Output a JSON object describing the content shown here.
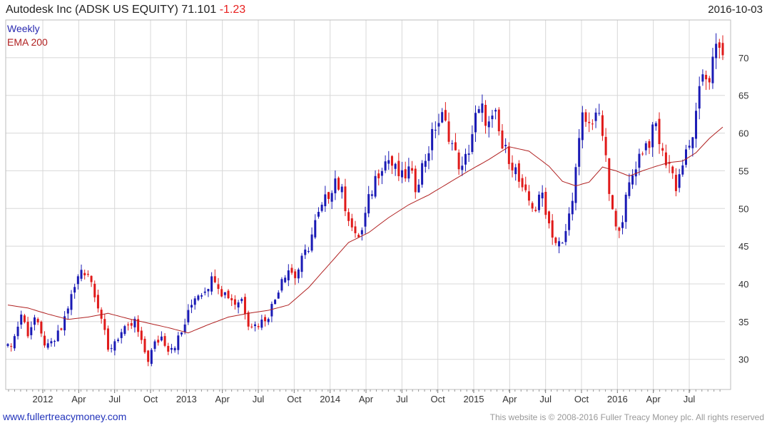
{
  "header": {
    "title": "Autodesk Inc (ADSK US EQUITY) 71.101",
    "change": "-1.23",
    "date": "2016-10-03"
  },
  "legend": {
    "weekly": "Weekly",
    "ema": "EMA 200"
  },
  "footer": {
    "left": "www.fullertreacymoney.com",
    "right": "This website is © 2008-2016 Fuller Treacy Money plc. All rights reserved"
  },
  "colors": {
    "up": "#1a1ab5",
    "down": "#e01a1a",
    "ema": "#b02020",
    "grid": "#d8d8d8"
  },
  "chart_data": {
    "type": "candlestick",
    "title": "Autodesk Inc (ADSK US EQUITY) 71.101 -1.23",
    "frequency": "Weekly",
    "ylim": [
      26,
      75
    ],
    "y_ticks": [
      30,
      35,
      40,
      45,
      50,
      55,
      60,
      65,
      70
    ],
    "x_tick_labels": [
      "2012",
      "Apr",
      "Jul",
      "Oct",
      "2013",
      "Apr",
      "Jul",
      "Oct",
      "2014",
      "Apr",
      "Jul",
      "Oct",
      "2015",
      "Apr",
      "Jul",
      "Oct",
      "2016",
      "Apr",
      "Jul"
    ],
    "price_path": [
      [
        0,
        31.5
      ],
      [
        2,
        33
      ],
      [
        4,
        36
      ],
      [
        6,
        33.5
      ],
      [
        8,
        35.5
      ],
      [
        10,
        33
      ],
      [
        12,
        31.5
      ],
      [
        14,
        32.5
      ],
      [
        16,
        34
      ],
      [
        18,
        37
      ],
      [
        20,
        39.5
      ],
      [
        22,
        42
      ],
      [
        24,
        41.5
      ],
      [
        26,
        39
      ],
      [
        28,
        35.5
      ],
      [
        30,
        31
      ],
      [
        32,
        32.5
      ],
      [
        34,
        33.5
      ],
      [
        36,
        34
      ],
      [
        38,
        35
      ],
      [
        40,
        32
      ],
      [
        42,
        30
      ],
      [
        44,
        32
      ],
      [
        46,
        33
      ],
      [
        48,
        31.5
      ],
      [
        50,
        32
      ],
      [
        52,
        33.5
      ],
      [
        54,
        36
      ],
      [
        56,
        38.5
      ],
      [
        58,
        39
      ],
      [
        60,
        40
      ],
      [
        62,
        41
      ],
      [
        64,
        39
      ],
      [
        66,
        38.5
      ],
      [
        68,
        37.5
      ],
      [
        70,
        38
      ],
      [
        72,
        35
      ],
      [
        74,
        34.5
      ],
      [
        76,
        35
      ],
      [
        78,
        36
      ],
      [
        80,
        38
      ],
      [
        82,
        41
      ],
      [
        84,
        42
      ],
      [
        86,
        41
      ],
      [
        88,
        43
      ],
      [
        90,
        45
      ],
      [
        92,
        48
      ],
      [
        94,
        50
      ],
      [
        96,
        52
      ],
      [
        98,
        54
      ],
      [
        100,
        52
      ],
      [
        102,
        49
      ],
      [
        104,
        46
      ],
      [
        106,
        47
      ],
      [
        108,
        51
      ],
      [
        110,
        54
      ],
      [
        112,
        56
      ],
      [
        114,
        56.5
      ],
      [
        116,
        55
      ],
      [
        118,
        54
      ],
      [
        120,
        55
      ],
      [
        122,
        53
      ],
      [
        124,
        55.5
      ],
      [
        126,
        58
      ],
      [
        128,
        61
      ],
      [
        130,
        62
      ],
      [
        132,
        60
      ],
      [
        134,
        57
      ],
      [
        136,
        55
      ],
      [
        138,
        58
      ],
      [
        140,
        62
      ],
      [
        142,
        63
      ],
      [
        144,
        61
      ],
      [
        146,
        62
      ],
      [
        148,
        58
      ],
      [
        150,
        57
      ],
      [
        152,
        55
      ],
      [
        154,
        52
      ],
      [
        156,
        51
      ],
      [
        158,
        50
      ],
      [
        160,
        52
      ],
      [
        162,
        48
      ],
      [
        164,
        45.5
      ],
      [
        166,
        45
      ],
      [
        168,
        49
      ],
      [
        170,
        55
      ],
      [
        172,
        62
      ],
      [
        174,
        61
      ],
      [
        176,
        63
      ],
      [
        178,
        60
      ],
      [
        180,
        52
      ],
      [
        182,
        47
      ],
      [
        184,
        49
      ],
      [
        186,
        53
      ],
      [
        188,
        56
      ],
      [
        190,
        58
      ],
      [
        192,
        59
      ],
      [
        194,
        61
      ],
      [
        196,
        57
      ],
      [
        198,
        56
      ],
      [
        200,
        53
      ],
      [
        202,
        56
      ],
      [
        204,
        58
      ],
      [
        206,
        62
      ],
      [
        208,
        68
      ],
      [
        210,
        67.5
      ],
      [
        212,
        71
      ],
      [
        214,
        71.1
      ]
    ],
    "ema_path": [
      [
        0,
        37.2
      ],
      [
        6,
        36.8
      ],
      [
        12,
        36
      ],
      [
        18,
        35.3
      ],
      [
        24,
        35.6
      ],
      [
        30,
        36.1
      ],
      [
        36,
        35.4
      ],
      [
        42,
        34.8
      ],
      [
        48,
        34.2
      ],
      [
        54,
        33.5
      ],
      [
        60,
        34.6
      ],
      [
        66,
        35.6
      ],
      [
        72,
        36.1
      ],
      [
        78,
        36.5
      ],
      [
        84,
        37.2
      ],
      [
        90,
        39.5
      ],
      [
        96,
        42.5
      ],
      [
        102,
        45.5
      ],
      [
        108,
        46.8
      ],
      [
        114,
        48.8
      ],
      [
        120,
        50.5
      ],
      [
        126,
        51.8
      ],
      [
        132,
        53.4
      ],
      [
        138,
        55
      ],
      [
        144,
        56.5
      ],
      [
        150,
        58.2
      ],
      [
        156,
        57.6
      ],
      [
        162,
        55.6
      ],
      [
        166,
        53.6
      ],
      [
        170,
        53
      ],
      [
        174,
        53.5
      ],
      [
        178,
        55.5
      ],
      [
        182,
        55
      ],
      [
        186,
        54.3
      ],
      [
        190,
        55
      ],
      [
        194,
        55.6
      ],
      [
        198,
        56.1
      ],
      [
        202,
        56.3
      ],
      [
        206,
        57.4
      ],
      [
        210,
        59.3
      ],
      [
        214,
        60.8
      ]
    ]
  }
}
